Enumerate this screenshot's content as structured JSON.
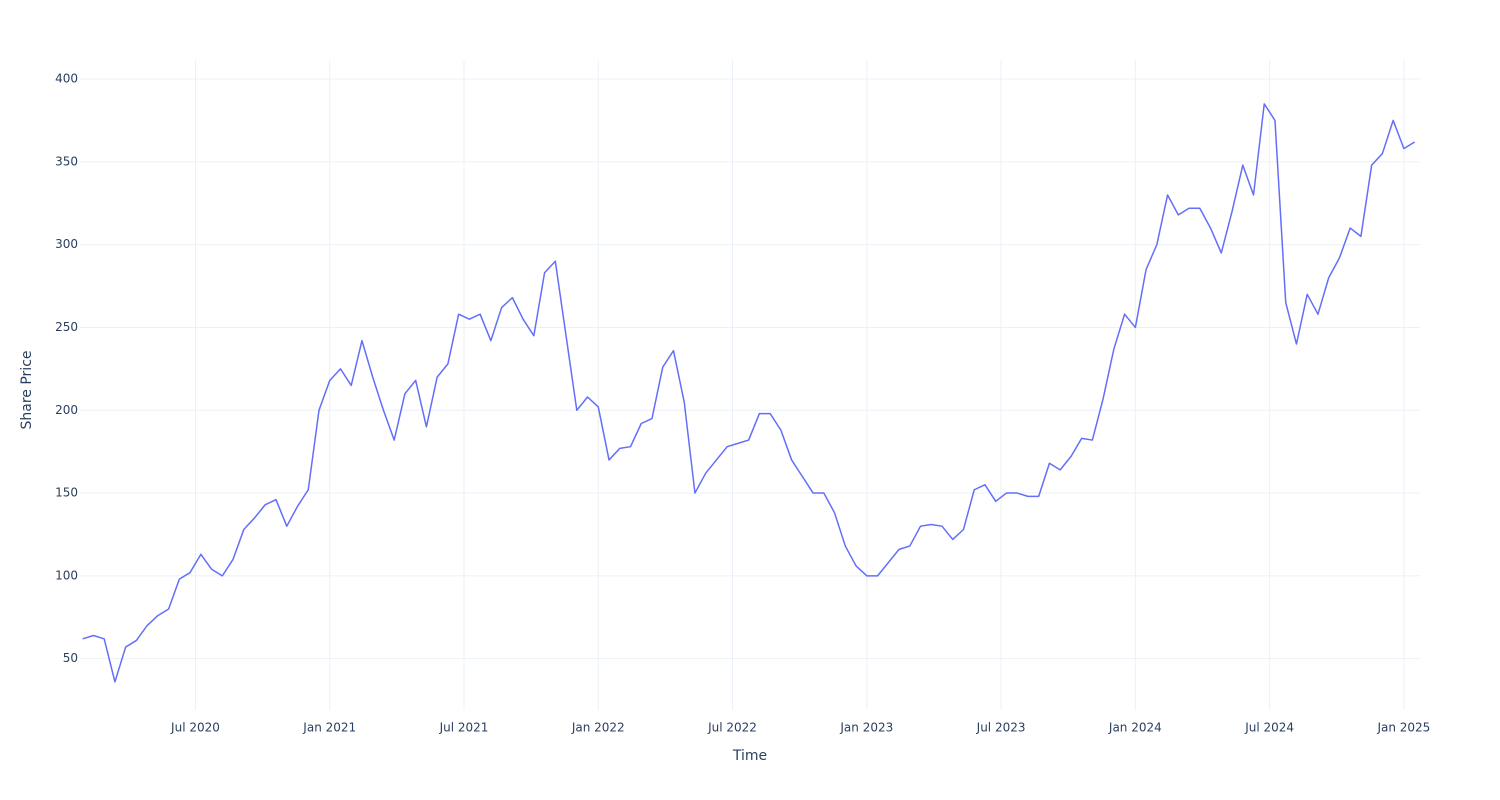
{
  "chart_data": {
    "type": "line",
    "x_label": "Time",
    "y_label": "Share Price",
    "x": [
      2020.08,
      2020.12,
      2020.16,
      2020.2,
      2020.24,
      2020.28,
      2020.32,
      2020.36,
      2020.4,
      2020.44,
      2020.48,
      2020.52,
      2020.56,
      2020.6,
      2020.64,
      2020.68,
      2020.72,
      2020.76,
      2020.8,
      2020.84,
      2020.88,
      2020.92,
      2020.96,
      2021,
      2021.04,
      2021.08,
      2021.12,
      2021.16,
      2021.2,
      2021.24,
      2021.28,
      2021.32,
      2021.36,
      2021.4,
      2021.44,
      2021.48,
      2021.52,
      2021.56,
      2021.6,
      2021.64,
      2021.68,
      2021.72,
      2021.76,
      2021.8,
      2021.84,
      2021.88,
      2021.92,
      2021.96,
      2022,
      2022.04,
      2022.08,
      2022.12,
      2022.16,
      2022.2,
      2022.24,
      2022.28,
      2022.32,
      2022.36,
      2022.4,
      2022.44,
      2022.48,
      2022.52,
      2022.56,
      2022.6,
      2022.64,
      2022.68,
      2022.72,
      2022.76,
      2022.8,
      2022.84,
      2022.88,
      2022.92,
      2022.96,
      2023,
      2023.04,
      2023.08,
      2023.12,
      2023.16,
      2023.2,
      2023.24,
      2023.28,
      2023.32,
      2023.36,
      2023.4,
      2023.44,
      2023.48,
      2023.52,
      2023.56,
      2023.6,
      2023.64,
      2023.68,
      2023.72,
      2023.76,
      2023.8,
      2023.84,
      2023.88,
      2023.92,
      2023.96,
      2024,
      2024.04,
      2024.08,
      2024.12,
      2024.16,
      2024.2,
      2024.24,
      2024.28,
      2024.32,
      2024.36,
      2024.4,
      2024.44,
      2024.48,
      2024.52,
      2024.56,
      2024.6,
      2024.64,
      2024.68,
      2024.72,
      2024.76,
      2024.8,
      2024.84,
      2024.88,
      2024.92,
      2024.96,
      2025,
      2025.04
    ],
    "series": [
      {
        "color": "#636efa",
        "values": [
          62,
          64,
          62,
          36,
          57,
          61,
          70,
          76,
          80,
          98,
          102,
          113,
          104,
          100,
          110,
          128,
          135,
          143,
          146,
          130,
          142,
          152,
          200,
          218,
          225,
          215,
          242,
          220,
          200,
          182,
          210,
          218,
          190,
          220,
          228,
          258,
          255,
          258,
          242,
          262,
          268,
          255,
          245,
          283,
          290,
          245,
          200,
          208,
          202,
          170,
          177,
          178,
          192,
          195,
          226,
          236,
          205,
          150,
          162,
          170,
          178,
          180,
          182,
          198,
          198,
          188,
          170,
          160,
          150,
          150,
          138,
          118,
          106,
          100,
          100,
          108,
          116,
          118,
          130,
          131,
          130,
          122,
          128,
          152,
          155,
          145,
          150,
          150,
          148,
          148,
          168,
          164,
          172,
          183,
          182,
          207,
          237,
          258,
          250,
          285,
          300,
          330,
          318,
          322,
          322,
          310,
          295,
          320,
          348,
          330,
          385,
          375,
          265,
          240,
          270,
          258,
          280,
          292,
          310,
          305,
          348,
          355,
          375,
          358,
          362
        ]
      }
    ],
    "xlim": [
      2020.07,
      2025.06
    ],
    "xticks": [
      {
        "value": 2020.5,
        "label": "Jul 2020"
      },
      {
        "value": 2021,
        "label": "Jan 2021"
      },
      {
        "value": 2021.5,
        "label": "Jul 2021"
      },
      {
        "value": 2022,
        "label": "Jan 2022"
      },
      {
        "value": 2022.5,
        "label": "Jul 2022"
      },
      {
        "value": 2023,
        "label": "Jan 2023"
      },
      {
        "value": 2023.5,
        "label": "Jul 2023"
      },
      {
        "value": 2024,
        "label": "Jan 2024"
      },
      {
        "value": 2024.5,
        "label": "Jul 2024"
      },
      {
        "value": 2025,
        "label": "Jan 2025"
      }
    ],
    "ylim": [
      19,
      411.5
    ],
    "yticks": [
      50,
      100,
      150,
      200,
      250,
      300,
      350,
      400
    ],
    "grid": true
  }
}
